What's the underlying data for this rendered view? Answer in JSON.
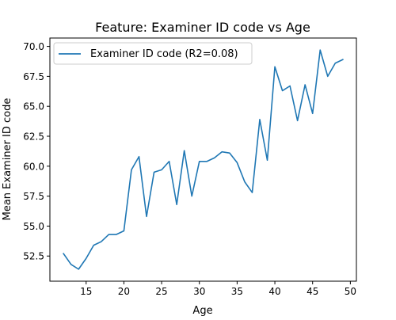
{
  "chart_data": {
    "type": "line",
    "title": "Feature: Examiner ID code vs Age",
    "xlabel": "Age",
    "ylabel": "Mean Examiner ID code",
    "xlim": [
      10.2,
      50.8
    ],
    "ylim": [
      50.4,
      70.7
    ],
    "x_ticks": [
      15,
      20,
      25,
      30,
      35,
      40,
      45,
      50
    ],
    "x_tick_labels": [
      "15",
      "20",
      "25",
      "30",
      "35",
      "40",
      "45",
      "50"
    ],
    "y_ticks": [
      52.5,
      55.0,
      57.5,
      60.0,
      62.5,
      65.0,
      67.5,
      70.0
    ],
    "y_tick_labels": [
      "52.5",
      "55.0",
      "57.5",
      "60.0",
      "62.5",
      "65.0",
      "67.5",
      "70.0"
    ],
    "grid": false,
    "legend": {
      "position": "top-left",
      "entries": [
        "Examiner ID code (R2=0.08)"
      ]
    },
    "series": [
      {
        "name": "Examiner ID code (R2=0.08)",
        "color": "#1f77b4",
        "x": [
          12,
          13,
          14,
          15,
          16,
          17,
          18,
          19,
          20,
          21,
          22,
          23,
          24,
          25,
          26,
          27,
          28,
          29,
          30,
          31,
          32,
          33,
          34,
          35,
          36,
          37,
          38,
          39,
          40,
          41,
          42,
          43,
          44,
          45,
          46,
          47,
          48,
          49
        ],
        "y": [
          52.7,
          51.8,
          51.4,
          52.3,
          53.4,
          53.7,
          54.3,
          54.3,
          54.6,
          59.7,
          60.8,
          55.8,
          59.5,
          59.7,
          60.4,
          56.8,
          61.3,
          57.5,
          60.4,
          60.4,
          60.7,
          61.2,
          61.1,
          60.3,
          58.7,
          57.8,
          63.9,
          60.5,
          68.3,
          66.3,
          66.7,
          63.8,
          66.8,
          64.4,
          69.7,
          67.5,
          68.6,
          68.9
        ]
      }
    ]
  }
}
